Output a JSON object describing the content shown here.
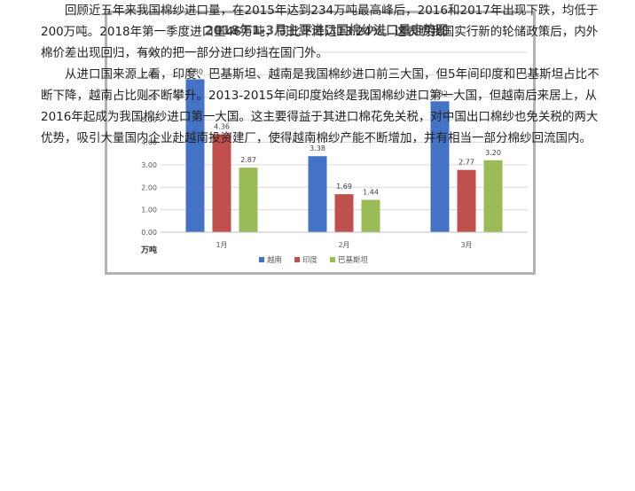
{
  "chart_data": {
    "type": "bar",
    "title": "2018年1-3月主要进口国棉纱进口量走势图",
    "ylabel": "万吨",
    "xlabel": "",
    "categories": [
      "1月",
      "2月",
      "3月"
    ],
    "series": [
      {
        "name": "越南",
        "color": "#4472c4",
        "values": [
          6.8,
          3.38,
          5.82
        ]
      },
      {
        "name": "印度",
        "color": "#c0504d",
        "values": [
          4.36,
          1.69,
          2.77
        ]
      },
      {
        "name": "巴基斯坦",
        "color": "#9bbb59",
        "values": [
          2.87,
          1.44,
          3.2
        ]
      }
    ],
    "ylim": [
      0,
      8
    ],
    "yticks": [
      "0.00",
      "1.00",
      "2.00",
      "3.00",
      "4.00",
      "5.00",
      "6.00",
      "7.00",
      "8.00"
    ],
    "data_labels": true,
    "grid": true,
    "legend_position": "bottom-center"
  },
  "article": {
    "paragraph_1": "回顾近五年来我国棉纱进口量，在2015年达到234万吨最高峰后，2016和2017年出现下跌，均低于200万吨。2018年第一季度进口量46万吨，同比下降达13.24%。这表明我国实行新的轮储政策后，内外棉价差出现回归，有效的把一部分进口纱挡在国门外。",
    "paragraph_2": "从进口国来源上看，印度、巴基斯坦、越南是我国棉纱进口前三大国，但5年间印度和巴基斯坦占比不断下降，越南占比则不断攀升。2013-2015年间印度始终是我国棉纱进口第一大国，但越南后来居上，从2016年起成为我国棉纱进口第一大国。这主要得益于其进口棉花免关税，对中国出口棉纱也免关税的两大优势，吸引大量国内企业赴越南投资建厂，使得越南棉纱产能不断增加，并有相当一部分棉纱回流国内。"
  }
}
